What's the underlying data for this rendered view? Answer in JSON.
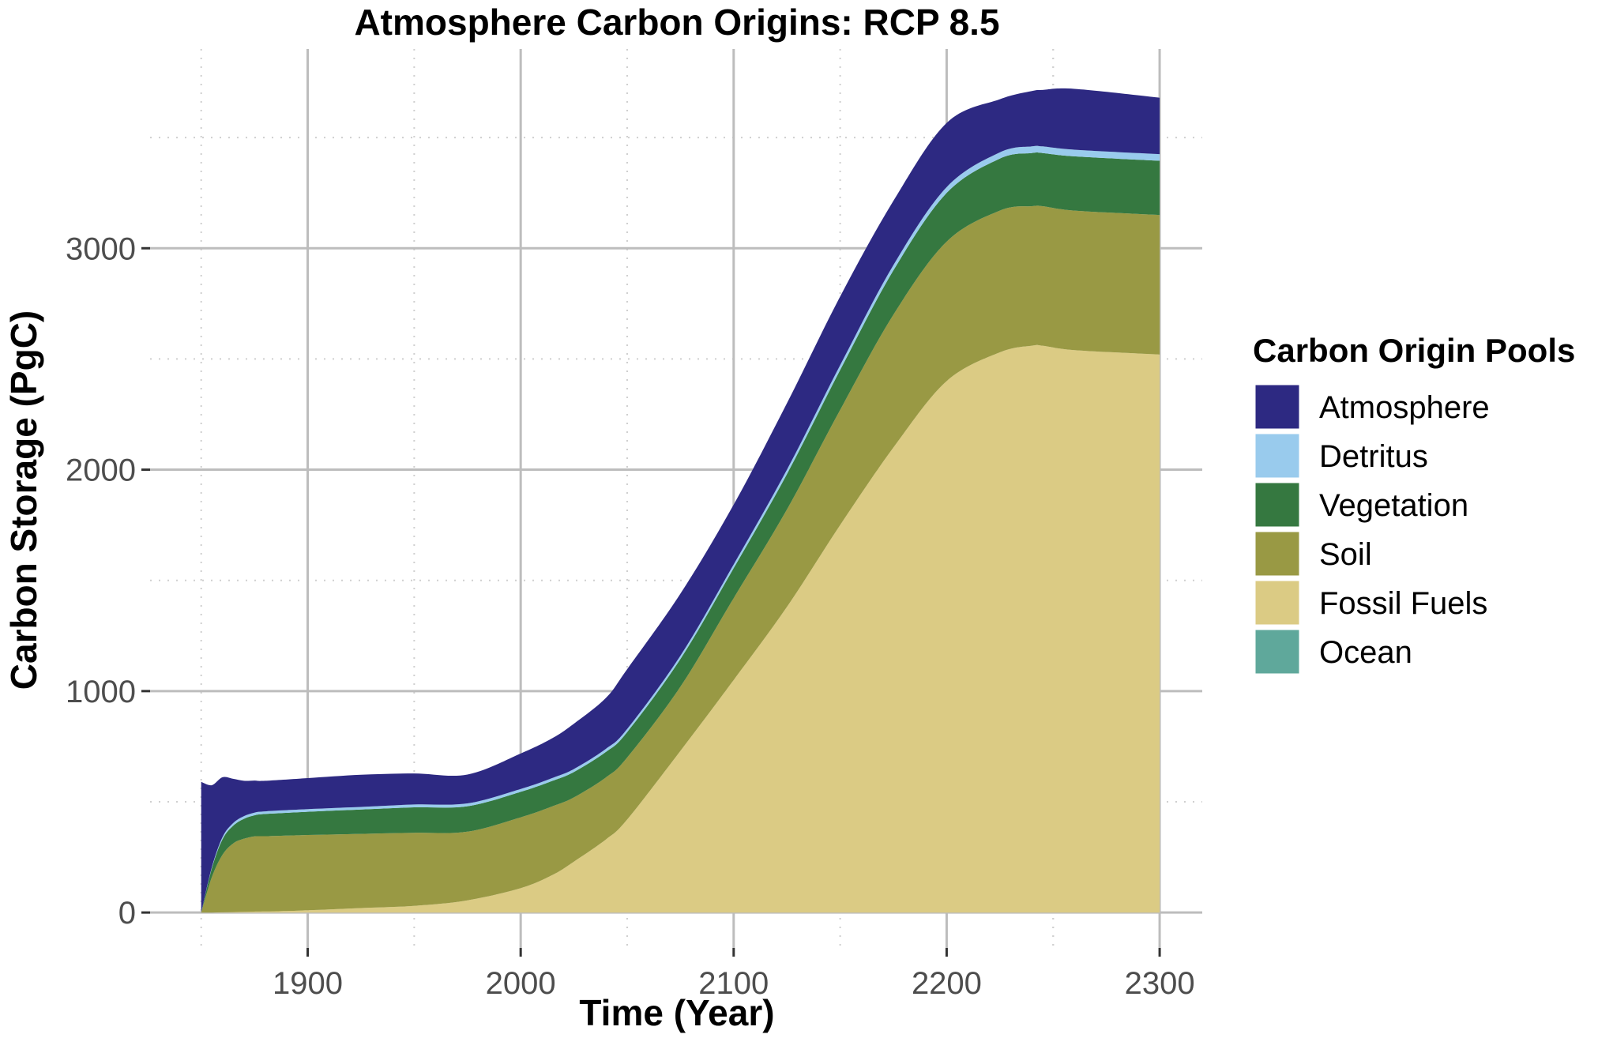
{
  "chart_data": {
    "type": "area",
    "title": "Atmosphere Carbon Origins: RCP 8.5",
    "xlabel": "Time (Year)",
    "ylabel": "Carbon Storage (PgC)",
    "xlim": [
      1826,
      2320
    ],
    "ylim": [
      -160,
      3900
    ],
    "x_ticks": [
      1900,
      2000,
      2100,
      2200,
      2300
    ],
    "y_ticks": [
      0,
      1000,
      2000,
      3000
    ],
    "grid": true,
    "legend_title": "Carbon Origin Pools",
    "legend_position": "right",
    "stack_order_bottom_to_top": [
      "Ocean",
      "Fossil Fuels",
      "Soil",
      "Vegetation",
      "Detritus",
      "Atmosphere"
    ],
    "x": [
      1850,
      1855,
      1860,
      1865,
      1870,
      1875,
      1880,
      1900,
      1925,
      1950,
      1975,
      2000,
      2015,
      2025,
      2040,
      2050,
      2075,
      2100,
      2125,
      2150,
      2175,
      2200,
      2225,
      2240,
      2245,
      2260,
      2300
    ],
    "series": [
      {
        "name": "Ocean",
        "color": "#5fa89b",
        "values": [
          0,
          0,
          0,
          0,
          0,
          0,
          0,
          0,
          0,
          0,
          0,
          0,
          0,
          0,
          0,
          0,
          0,
          0,
          0,
          0,
          0,
          0,
          0,
          0,
          0,
          0,
          0
        ]
      },
      {
        "name": "Fossil Fuels",
        "color": "#dbcb84",
        "values": [
          0,
          0,
          1,
          2,
          3,
          4,
          5,
          10,
          20,
          30,
          55,
          110,
          170,
          230,
          330,
          420,
          730,
          1050,
          1380,
          1750,
          2100,
          2400,
          2530,
          2560,
          2560,
          2540,
          2520
        ]
      },
      {
        "name": "Soil",
        "color": "#999944",
        "values": [
          0,
          160,
          260,
          310,
          330,
          340,
          340,
          340,
          335,
          330,
          310,
          320,
          310,
          290,
          280,
          280,
          290,
          370,
          440,
          520,
          600,
          630,
          640,
          630,
          630,
          630,
          630
        ]
      },
      {
        "name": "Vegetation",
        "color": "#357840",
        "values": [
          0,
          40,
          70,
          80,
          90,
          95,
          100,
          105,
          110,
          115,
          115,
          115,
          115,
          115,
          115,
          115,
          125,
          135,
          160,
          180,
          200,
          220,
          235,
          240,
          240,
          245,
          245
        ]
      },
      {
        "name": "Detritus",
        "color": "#99cbed",
        "values": [
          0,
          5,
          10,
          12,
          12,
          12,
          12,
          12,
          12,
          13,
          13,
          13,
          13,
          13,
          14,
          14,
          15,
          17,
          20,
          22,
          24,
          26,
          28,
          30,
          30,
          30,
          30
        ]
      },
      {
        "name": "Atmosphere",
        "color": "#2d2982",
        "values": [
          590,
          370,
          270,
          200,
          160,
          145,
          138,
          140,
          145,
          140,
          130,
          160,
          180,
          205,
          230,
          270,
          280,
          270,
          300,
          310,
          290,
          290,
          240,
          250,
          255,
          275,
          255
        ]
      }
    ]
  }
}
